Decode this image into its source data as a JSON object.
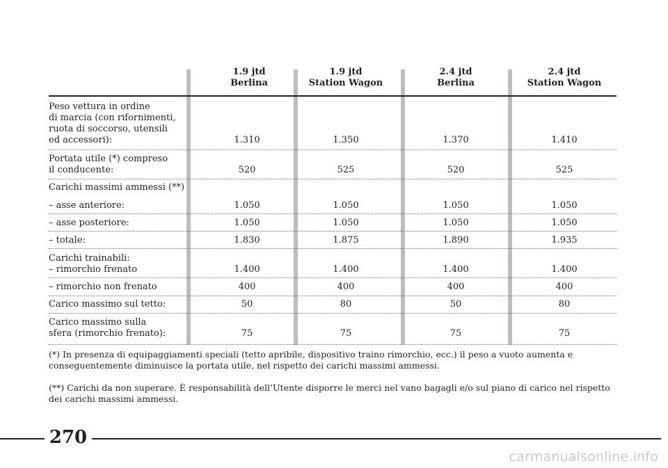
{
  "table": {
    "columns": [
      {
        "line1": "1.9 jtd",
        "line2": "Berlina"
      },
      {
        "line1": "1.9 jtd",
        "line2": "Station Wagon"
      },
      {
        "line1": "2.4 jtd",
        "line2": "Berlina"
      },
      {
        "line1": "2.4 jtd",
        "line2": "Station Wagon"
      }
    ],
    "rows": [
      {
        "label": [
          "Peso vettura in ordine",
          "di marcia (con rifornimenti,",
          "ruota di soccorso, utensili",
          "ed accessori):"
        ],
        "values": [
          "1.310",
          "1.350",
          "1.370",
          "1.410"
        ]
      },
      {
        "label": [
          "Portata utile (*) compreso",
          "il conducente:"
        ],
        "values": [
          "520",
          "525",
          "520",
          "525"
        ]
      },
      {
        "label": [
          "Carichi massimi ammessi (**)"
        ],
        "values": []
      },
      {
        "label": [
          "– asse anteriore:"
        ],
        "values": [
          "1.050",
          "1.050",
          "1.050",
          "1.050"
        ]
      },
      {
        "label": [
          "– asse posteriore:"
        ],
        "values": [
          "1.050",
          "1.050",
          "1.050",
          "1.050"
        ]
      },
      {
        "label": [
          "– totale:"
        ],
        "values": [
          "1.830",
          "1.875",
          "1.890",
          "1.935"
        ]
      },
      {
        "label": [
          "Carichi trainabili:",
          "– rimorchio frenato"
        ],
        "values": [
          "1.400",
          "1.400",
          "1.400",
          "1.400"
        ]
      },
      {
        "label": [
          "– rimorchio non frenato"
        ],
        "values": [
          "400",
          "400",
          "400",
          "400"
        ]
      },
      {
        "label": [
          "Carico massimo sul tetto:"
        ],
        "values": [
          "50",
          "80",
          "50",
          "80"
        ]
      },
      {
        "label": [
          "Carico massimo sulla",
          "sfera (rimorchio frenato):"
        ],
        "values": [
          "75",
          "75",
          "75",
          "75"
        ]
      }
    ]
  },
  "notes": [
    "(*) In presenza di equipaggiamenti speciali (tetto apribile, dispositivo traino rimorchio, ecc.) il peso a vuoto aumenta e conseguentemente diminuisce la portata utile, nel rispetto dei carichi massimi ammessi.",
    "(**) Carichi da non superare. È responsabilità dell’Utente disporre le merci nel vano bagagli e/o sul piano di carico nel rispetto dei carichi massimi ammessi."
  ],
  "page_number": "270",
  "watermark": "carmanualsonline.info"
}
